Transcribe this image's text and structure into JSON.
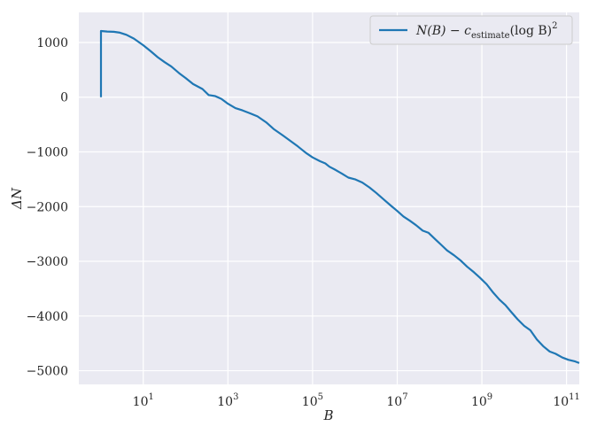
{
  "chart_data": {
    "type": "line",
    "title": "",
    "xlabel": "B",
    "ylabel": "ΔN",
    "xscale": "log",
    "xlim": [
      0.3,
      200000000000.0
    ],
    "ylim": [
      -5250,
      1550
    ],
    "grid": true,
    "background": "#eaeaf2",
    "grid_color": "#ffffff",
    "legend_position": "top-right",
    "x_ticks": [
      {
        "value": 10,
        "base": "10",
        "exp": "1"
      },
      {
        "value": 1000,
        "base": "10",
        "exp": "3"
      },
      {
        "value": 100000,
        "base": "10",
        "exp": "5"
      },
      {
        "value": 10000000,
        "base": "10",
        "exp": "7"
      },
      {
        "value": 1000000000,
        "base": "10",
        "exp": "9"
      },
      {
        "value": 100000000000,
        "base": "10",
        "exp": "11"
      }
    ],
    "y_ticks": [
      {
        "value": 1000,
        "label": "1000"
      },
      {
        "value": 0,
        "label": "0"
      },
      {
        "value": -1000,
        "label": "−1000"
      },
      {
        "value": -2000,
        "label": "−2000"
      },
      {
        "value": -3000,
        "label": "−3000"
      },
      {
        "value": -4000,
        "label": "−4000"
      },
      {
        "value": -5000,
        "label": "−5000"
      }
    ],
    "series": [
      {
        "name": "N(B) − c_estimate(log B)^2",
        "legend_parts": {
          "main": "N(B) − c",
          "sub": "estimate",
          "tail": "(log B)",
          "sup": "2"
        },
        "color": "#1f77b4",
        "points": [
          [
            1,
            0
          ],
          [
            1,
            1210
          ],
          [
            1.4,
            1200
          ],
          [
            2,
            1195
          ],
          [
            2.8,
            1180
          ],
          [
            4,
            1140
          ],
          [
            6,
            1070
          ],
          [
            10,
            950
          ],
          [
            15,
            840
          ],
          [
            22,
            730
          ],
          [
            32,
            640
          ],
          [
            46,
            560
          ],
          [
            70,
            440
          ],
          [
            100,
            350
          ],
          [
            150,
            240
          ],
          [
            250,
            150
          ],
          [
            350,
            40
          ],
          [
            500,
            20
          ],
          [
            700,
            -30
          ],
          [
            1000,
            -120
          ],
          [
            1500,
            -200
          ],
          [
            2200,
            -240
          ],
          [
            3200,
            -290
          ],
          [
            5000,
            -350
          ],
          [
            8000,
            -460
          ],
          [
            12000,
            -580
          ],
          [
            20000,
            -700
          ],
          [
            30000,
            -800
          ],
          [
            45000,
            -900
          ],
          [
            70000,
            -1020
          ],
          [
            100000,
            -1100
          ],
          [
            150000,
            -1170
          ],
          [
            200000,
            -1210
          ],
          [
            250000,
            -1270
          ],
          [
            350000,
            -1330
          ],
          [
            500000,
            -1400
          ],
          [
            700000,
            -1470
          ],
          [
            1000000,
            -1500
          ],
          [
            1500000,
            -1560
          ],
          [
            2200000,
            -1650
          ],
          [
            3200000,
            -1750
          ],
          [
            5000000,
            -1880
          ],
          [
            7000000,
            -1980
          ],
          [
            10000000,
            -2080
          ],
          [
            14000000,
            -2180
          ],
          [
            20000000,
            -2260
          ],
          [
            28000000,
            -2340
          ],
          [
            40000000,
            -2440
          ],
          [
            55000000,
            -2480
          ],
          [
            80000000,
            -2600
          ],
          [
            110000000,
            -2700
          ],
          [
            150000000,
            -2800
          ],
          [
            220000000,
            -2890
          ],
          [
            320000000,
            -2990
          ],
          [
            450000000,
            -3100
          ],
          [
            650000000,
            -3200
          ],
          [
            900000000,
            -3300
          ],
          [
            1300000000,
            -3420
          ],
          [
            1800000000,
            -3560
          ],
          [
            2600000000,
            -3700
          ],
          [
            3600000000,
            -3800
          ],
          [
            5000000000,
            -3930
          ],
          [
            7000000000,
            -4060
          ],
          [
            10000000000,
            -4180
          ],
          [
            14000000000,
            -4260
          ],
          [
            20000000000,
            -4430
          ],
          [
            28000000000,
            -4550
          ],
          [
            40000000000,
            -4650
          ],
          [
            55000000000,
            -4690
          ],
          [
            80000000000,
            -4760
          ],
          [
            110000000000,
            -4800
          ],
          [
            160000000000,
            -4830
          ],
          [
            200000000000,
            -4860
          ]
        ]
      }
    ]
  }
}
